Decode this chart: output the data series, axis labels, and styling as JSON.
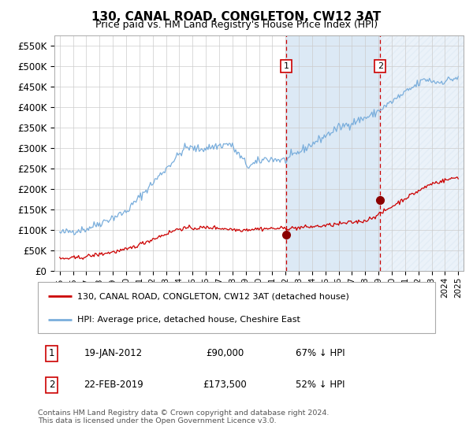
{
  "title": "130, CANAL ROAD, CONGLETON, CW12 3AT",
  "subtitle": "Price paid vs. HM Land Registry's House Price Index (HPI)",
  "legend_line1": "130, CANAL ROAD, CONGLETON, CW12 3AT (detached house)",
  "legend_line2": "HPI: Average price, detached house, Cheshire East",
  "annotation1_date": "19-JAN-2012",
  "annotation1_price": "£90,000",
  "annotation1_pct": "67% ↓ HPI",
  "annotation2_date": "22-FEB-2019",
  "annotation2_price": "£173,500",
  "annotation2_pct": "52% ↓ HPI",
  "footer": "Contains HM Land Registry data © Crown copyright and database right 2024.\nThis data is licensed under the Open Government Licence v3.0.",
  "hpi_color": "#7aaedc",
  "price_color": "#cc0000",
  "marker_color": "#8b0000",
  "shade_color": "#dce9f5",
  "dashed_color": "#cc0000",
  "annotation_box_color": "#cc0000",
  "background_color": "#ffffff",
  "grid_color": "#cccccc",
  "ylim": [
    0,
    575000
  ],
  "xlim_start": 1994.6,
  "xlim_end": 2025.4,
  "sale1_year": 2012.05,
  "sale1_price": 90000,
  "sale2_year": 2019.13,
  "sale2_price": 173500
}
